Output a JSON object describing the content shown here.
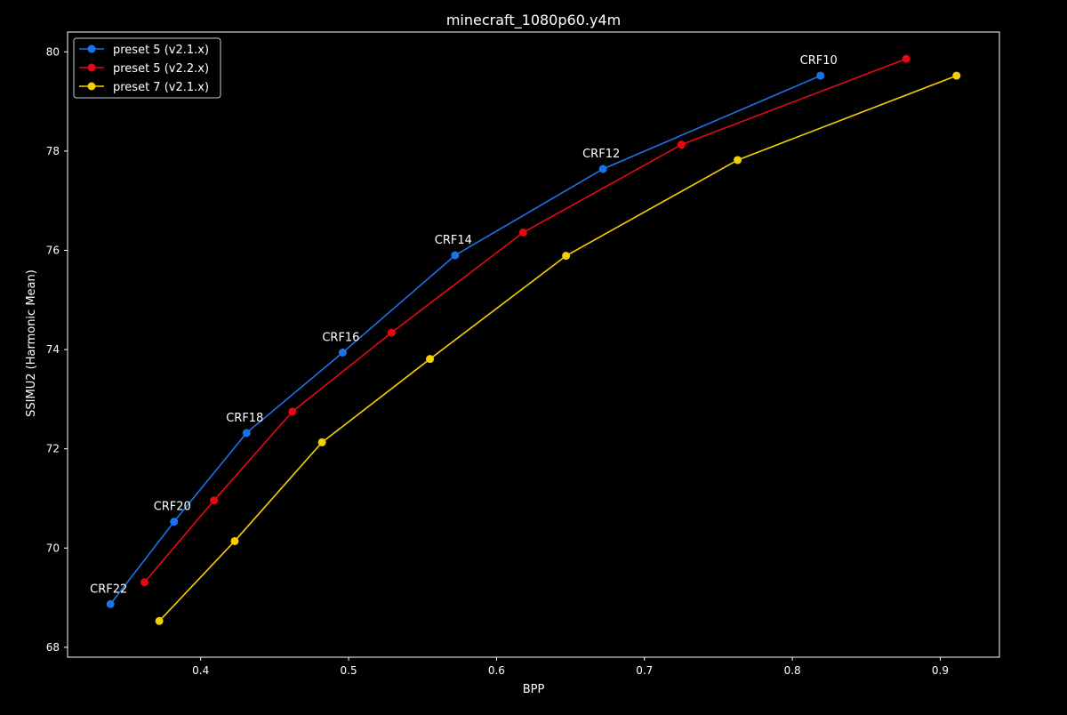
{
  "chart_data": {
    "type": "line",
    "title": "minecraft_1080p60.y4m",
    "xlabel": "BPP",
    "ylabel": "SSIMU2 (Harmonic Mean)",
    "xlim": [
      0.31,
      0.94
    ],
    "ylim": [
      67.8,
      80.4
    ],
    "x_ticks": [
      0.4,
      0.5,
      0.6,
      0.7,
      0.8,
      0.9
    ],
    "y_ticks": [
      68,
      70,
      72,
      74,
      76,
      78,
      80
    ],
    "grid": false,
    "legend_position": "top-left",
    "background": "#000000",
    "series": [
      {
        "name": "preset 5 (v2.1.x)",
        "color": "#1a73e8",
        "x": [
          0.339,
          0.382,
          0.431,
          0.496,
          0.572,
          0.672,
          0.819
        ],
        "y": [
          68.87,
          70.53,
          72.32,
          73.94,
          75.9,
          77.64,
          79.52
        ]
      },
      {
        "name": "preset 5 (v2.2.x)",
        "color": "#e50914",
        "x": [
          0.362,
          0.409,
          0.462,
          0.529,
          0.618,
          0.725,
          0.877
        ],
        "y": [
          69.31,
          70.96,
          72.75,
          74.34,
          76.36,
          78.13,
          79.86
        ]
      },
      {
        "name": "preset 7 (v2.1.x)",
        "color": "#f5d000",
        "x": [
          0.372,
          0.423,
          0.482,
          0.555,
          0.647,
          0.763,
          0.911
        ],
        "y": [
          68.53,
          70.14,
          72.13,
          73.81,
          75.89,
          77.82,
          79.52
        ]
      }
    ],
    "annotations": [
      {
        "text": "CRF22",
        "x": 0.339,
        "y": 68.87
      },
      {
        "text": "CRF20",
        "x": 0.382,
        "y": 70.53
      },
      {
        "text": "CRF18",
        "x": 0.431,
        "y": 72.32
      },
      {
        "text": "CRF16",
        "x": 0.496,
        "y": 73.94
      },
      {
        "text": "CRF14",
        "x": 0.572,
        "y": 75.9
      },
      {
        "text": "CRF12",
        "x": 0.672,
        "y": 77.64
      },
      {
        "text": "CRF10",
        "x": 0.819,
        "y": 79.52
      }
    ]
  }
}
